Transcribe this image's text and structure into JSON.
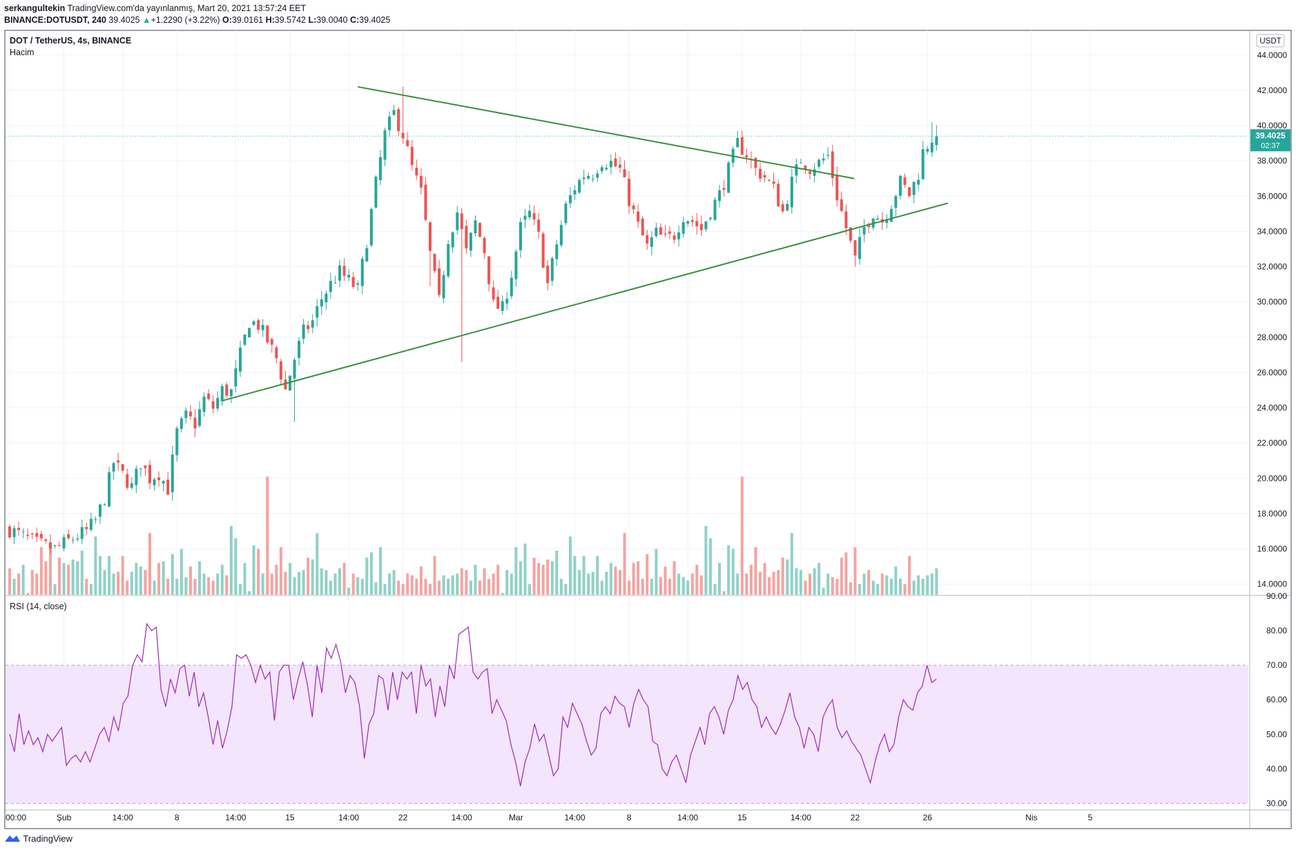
{
  "header": {
    "author": "serkangultekin",
    "published": "TradingView.com'da yayınlanmış, Mart 20, 2021 13:57:24 EET",
    "symbol": "BINANCE:DOTUSDT, 240",
    "last": "39.4025",
    "change_arrow": "▲",
    "change": "+1.2290 (+3.22%)",
    "o_label": "O:",
    "o": "39.0161",
    "h_label": "H:",
    "h": "39.5742",
    "l_label": "L:",
    "l": "39.0040",
    "c_label": "C:",
    "c": "39.4025"
  },
  "main_panel": {
    "title": "DOT / TetherUS, 4s, BINANCE",
    "volume_label": "Hacim",
    "currency_badge": "USDT",
    "price_badge": "39.4025",
    "countdown": "02:37"
  },
  "rsi_panel": {
    "title": "RSI (14, close)"
  },
  "footer": {
    "brand": "TradingView",
    "logo_icon": "tradingview-logo-icon"
  },
  "colors": {
    "up": "#26a69a",
    "down": "#ef5350",
    "vol_up": "#8fd1c7",
    "vol_down": "#f5a3a1",
    "trendline": "#388e3c",
    "rsi_line": "#9c27b0",
    "rsi_band": "#f3e5fc",
    "price_line": "#26a69a"
  },
  "chart_data": [
    {
      "type": "candlestick",
      "y_ticks": [
        "44.0000",
        "42.0000",
        "40.0000",
        "38.0000",
        "36.0000",
        "34.0000",
        "32.0000",
        "30.0000",
        "28.0000",
        "26.0000",
        "24.0000",
        "22.0000",
        "20.0000",
        "18.0000",
        "16.0000",
        "14.0000"
      ],
      "ylim": [
        13.4,
        45.4
      ],
      "x_ticks": [
        "00:00",
        "Şub",
        "14:00",
        "8",
        "14:00",
        "15",
        "14:00",
        "22",
        "14:00",
        "Mar",
        "14:00",
        "8",
        "14:00",
        "15",
        "14:00",
        "22",
        "26",
        "Nis",
        "5"
      ],
      "close_path": [
        [
          0,
          17.1
        ],
        [
          6,
          16.3
        ],
        [
          10,
          16.0
        ],
        [
          14,
          16.6
        ],
        [
          17,
          17.0
        ],
        [
          19,
          17.6
        ],
        [
          21,
          18.9
        ],
        [
          23,
          20.9
        ],
        [
          25,
          20.2
        ],
        [
          27,
          19.5
        ],
        [
          29,
          20.9
        ],
        [
          31,
          20.0
        ],
        [
          33,
          20.3
        ],
        [
          35,
          19.4
        ],
        [
          37,
          22.6
        ],
        [
          39,
          23.5
        ],
        [
          41,
          23.1
        ],
        [
          43,
          24.5
        ],
        [
          45,
          24.0
        ],
        [
          47,
          25.0
        ],
        [
          49,
          24.9
        ],
        [
          51,
          27.0
        ],
        [
          53,
          28.9
        ],
        [
          55,
          28.7
        ],
        [
          57,
          27.8
        ],
        [
          59,
          26.8
        ],
        [
          61,
          25.0
        ],
        [
          63,
          26.8
        ],
        [
          65,
          28.3
        ],
        [
          67,
          28.9
        ],
        [
          69,
          30.2
        ],
        [
          71,
          31.0
        ],
        [
          73,
          31.7
        ],
        [
          75,
          31.2
        ],
        [
          77,
          30.7
        ],
        [
          79,
          33.5
        ],
        [
          81,
          36.7
        ],
        [
          83,
          39.5
        ],
        [
          85,
          40.7
        ],
        [
          87,
          39.5
        ],
        [
          89,
          37.6
        ],
        [
          91,
          36.2
        ],
        [
          93,
          32.7
        ],
        [
          95,
          30.0
        ],
        [
          97,
          33.6
        ],
        [
          99,
          35.1
        ],
        [
          101,
          32.8
        ],
        [
          103,
          34.5
        ],
        [
          105,
          32.9
        ],
        [
          107,
          29.8
        ],
        [
          109,
          29.6
        ],
        [
          111,
          31.6
        ],
        [
          113,
          34.2
        ],
        [
          115,
          35.0
        ],
        [
          117,
          33.7
        ],
        [
          119,
          31.0
        ],
        [
          121,
          33.3
        ],
        [
          123,
          35.4
        ],
        [
          125,
          36.5
        ],
        [
          127,
          37.2
        ],
        [
          129,
          37.3
        ],
        [
          131,
          38.0
        ],
        [
          133,
          37.9
        ],
        [
          135,
          37.5
        ],
        [
          137,
          35.8
        ],
        [
          139,
          34.3
        ],
        [
          141,
          33.1
        ],
        [
          143,
          33.9
        ],
        [
          145,
          33.5
        ],
        [
          147,
          33.8
        ],
        [
          149,
          34.9
        ],
        [
          151,
          34.6
        ],
        [
          153,
          34.1
        ],
        [
          155,
          35.2
        ],
        [
          157,
          36.1
        ],
        [
          159,
          37.5
        ],
        [
          161,
          39.0
        ],
        [
          163,
          38.4
        ],
        [
          165,
          37.5
        ],
        [
          167,
          37.1
        ],
        [
          169,
          36.4
        ],
        [
          171,
          35.1
        ],
        [
          173,
          36.8
        ],
        [
          175,
          38.1
        ],
        [
          177,
          37.6
        ],
        [
          179,
          37.9
        ],
        [
          181,
          38.3
        ],
        [
          183,
          36.0
        ],
        [
          185,
          34.2
        ],
        [
          187,
          32.4
        ],
        [
          189,
          34.2
        ],
        [
          191,
          35.1
        ],
        [
          193,
          34.6
        ],
        [
          195,
          35.6
        ],
        [
          197,
          36.8
        ],
        [
          199,
          36.1
        ],
        [
          201,
          37.3
        ],
        [
          202,
          38.5
        ],
        [
          204,
          39.3
        ],
        [
          206,
          39.4
        ]
      ],
      "volume": [
        14.9,
        14.3,
        14.6,
        15.1,
        13.5,
        14.8,
        14.6,
        16.1,
        15.3,
        16.3,
        14.0,
        15.5,
        15.2,
        15.1,
        15.4,
        15.3,
        15.9,
        14.3,
        14.0,
        16.7,
        15.6,
        14.8,
        15.6,
        14.6,
        14.7,
        15.6,
        14.2,
        14.7,
        15.2,
        15.0,
        14.8,
        16.9,
        14.2,
        15.2,
        15.3,
        14.3,
        15.7,
        14.3,
        16.0,
        14.4,
        15.0,
        14.3,
        15.3,
        14.6,
        14.4,
        14.2,
        14.6,
        15.1,
        14.5,
        17.3,
        16.6,
        14.0,
        15.2,
        13.6,
        16.2,
        16.0,
        14.6,
        20.1,
        14.6,
        15.1,
        16.1,
        14.7,
        15.2,
        14.4,
        14.7,
        14.8,
        15.5,
        15.4,
        16.9,
        14.9,
        14.8,
        14.2,
        14.6,
        14.9,
        15.2,
        13.8,
        14.6,
        14.4,
        14.3,
        15.5,
        15.8,
        14.1,
        16.1,
        14.0,
        14.6,
        14.8,
        14.2,
        14.0,
        14.6,
        14.5,
        14.3,
        15.0,
        14.3,
        14.0,
        15.6,
        14.2,
        14.5,
        14.3,
        14.5,
        14.6,
        14.9,
        14.8,
        14.2,
        15.1,
        14.2
      ]
    },
    {
      "type": "line",
      "name": "RSI (14, close)",
      "y_ticks": [
        "90.00",
        "80.00",
        "70.00",
        "60.00",
        "50.00",
        "40.00",
        "30.00"
      ],
      "ylim": [
        28.5,
        90
      ],
      "band": [
        30,
        70
      ],
      "values": [
        50,
        45,
        56,
        47,
        51,
        47,
        49,
        45,
        50,
        48,
        50,
        52,
        41,
        43,
        44,
        42,
        45,
        42,
        46,
        50,
        52,
        48,
        55,
        51,
        59,
        61,
        70,
        73,
        71,
        82,
        80,
        81,
        63,
        58,
        66,
        62,
        69,
        70,
        61,
        68,
        58,
        62,
        55,
        47,
        54,
        46,
        51,
        58,
        73,
        72,
        73,
        70,
        65,
        70,
        66,
        68,
        54,
        68,
        70,
        70,
        60,
        66,
        71,
        64,
        55,
        70,
        62,
        75,
        72,
        76,
        71,
        62,
        67,
        65,
        58,
        43,
        53,
        56,
        67,
        66,
        57,
        68,
        60,
        68,
        66,
        68,
        56,
        70,
        64,
        66,
        55,
        64,
        58,
        70,
        66,
        79,
        80,
        81,
        68,
        66,
        68,
        69,
        56,
        60,
        57,
        54,
        47,
        42,
        35,
        42,
        46,
        53,
        48,
        50,
        44,
        38,
        40,
        55,
        52,
        59,
        56,
        53,
        48,
        44,
        46,
        56,
        58,
        56,
        61,
        59,
        58,
        52,
        59,
        63,
        60,
        58,
        48,
        47,
        40,
        38,
        42,
        44,
        40,
        36,
        44,
        48,
        52,
        47,
        56,
        58,
        55,
        50,
        57,
        60,
        67,
        63,
        65,
        60,
        58,
        52,
        55,
        52,
        50,
        53,
        57,
        62,
        55,
        52,
        46,
        52,
        50,
        45,
        55,
        58,
        60,
        52,
        49,
        51,
        48,
        46,
        44,
        40,
        36,
        42,
        47,
        50,
        45,
        47,
        55,
        60,
        58,
        57,
        62,
        64,
        70,
        65,
        66
      ]
    }
  ]
}
